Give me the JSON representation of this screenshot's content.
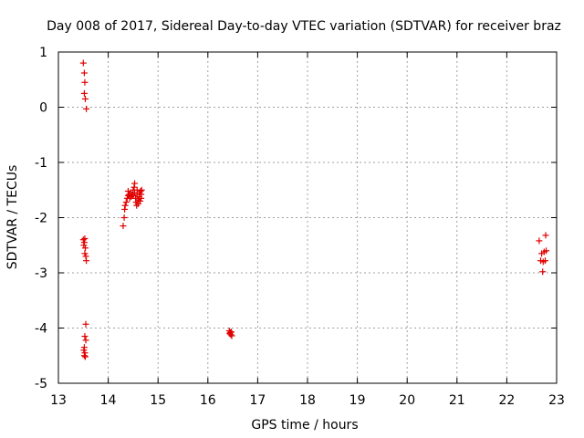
{
  "chart_data": {
    "type": "scatter",
    "title": "Day 008 of 2017, Sidereal Day-to-day VTEC variation (SDTVAR) for receiver braz",
    "xlabel": "GPS time / hours",
    "ylabel": "SDTVAR / TECUs",
    "xlim": [
      13,
      23
    ],
    "ylim": [
      -5,
      1
    ],
    "xticks": [
      "13",
      "14",
      "15",
      "16",
      "17",
      "18",
      "19",
      "20",
      "21",
      "22",
      "23"
    ],
    "yticks": [
      "1",
      "0",
      "-1",
      "-2",
      "-3",
      "-4",
      "-5"
    ],
    "grid": true,
    "marker": "+",
    "color": "#e00000",
    "series": [
      {
        "name": "SDTVAR",
        "points": [
          [
            13.5,
            0.8
          ],
          [
            13.52,
            0.62
          ],
          [
            13.53,
            0.45
          ],
          [
            13.52,
            0.25
          ],
          [
            13.54,
            0.15
          ],
          [
            13.56,
            -0.03
          ],
          [
            13.5,
            -2.4
          ],
          [
            13.52,
            -2.45
          ],
          [
            13.53,
            -2.38
          ],
          [
            13.51,
            -2.5
          ],
          [
            13.54,
            -2.55
          ],
          [
            13.53,
            -2.65
          ],
          [
            13.55,
            -2.7
          ],
          [
            13.56,
            -2.78
          ],
          [
            13.55,
            -3.93
          ],
          [
            13.53,
            -4.15
          ],
          [
            13.55,
            -4.22
          ],
          [
            13.52,
            -4.35
          ],
          [
            13.51,
            -4.4
          ],
          [
            13.53,
            -4.45
          ],
          [
            13.52,
            -4.5
          ],
          [
            13.54,
            -4.52
          ],
          [
            14.3,
            -2.15
          ],
          [
            14.32,
            -2.0
          ],
          [
            14.33,
            -1.85
          ],
          [
            14.34,
            -1.78
          ],
          [
            14.36,
            -1.72
          ],
          [
            14.38,
            -1.65
          ],
          [
            14.4,
            -1.6
          ],
          [
            14.4,
            -1.52
          ],
          [
            14.42,
            -1.58
          ],
          [
            14.43,
            -1.65
          ],
          [
            14.45,
            -1.55
          ],
          [
            14.46,
            -1.62
          ],
          [
            14.48,
            -1.58
          ],
          [
            14.5,
            -1.5
          ],
          [
            14.5,
            -1.6
          ],
          [
            14.52,
            -1.45
          ],
          [
            14.53,
            -1.38
          ],
          [
            14.53,
            -1.55
          ],
          [
            14.55,
            -1.65
          ],
          [
            14.56,
            -1.72
          ],
          [
            14.57,
            -1.78
          ],
          [
            14.58,
            -1.58
          ],
          [
            14.58,
            -1.5
          ],
          [
            14.6,
            -1.68
          ],
          [
            14.6,
            -1.75
          ],
          [
            14.62,
            -1.62
          ],
          [
            14.63,
            -1.55
          ],
          [
            14.64,
            -1.7
          ],
          [
            14.65,
            -1.52
          ],
          [
            14.66,
            -1.65
          ],
          [
            14.66,
            -1.58
          ],
          [
            14.67,
            -1.5
          ],
          [
            16.43,
            -4.05
          ],
          [
            16.44,
            -4.1
          ],
          [
            16.45,
            -4.08
          ],
          [
            16.46,
            -4.12
          ],
          [
            16.47,
            -4.07
          ],
          [
            16.48,
            -4.14
          ],
          [
            22.65,
            -2.42
          ],
          [
            22.68,
            -2.78
          ],
          [
            22.7,
            -2.65
          ],
          [
            22.72,
            -2.98
          ],
          [
            22.73,
            -2.8
          ],
          [
            22.75,
            -2.62
          ],
          [
            22.77,
            -2.78
          ],
          [
            22.78,
            -2.32
          ],
          [
            22.79,
            -2.6
          ]
        ]
      }
    ]
  }
}
